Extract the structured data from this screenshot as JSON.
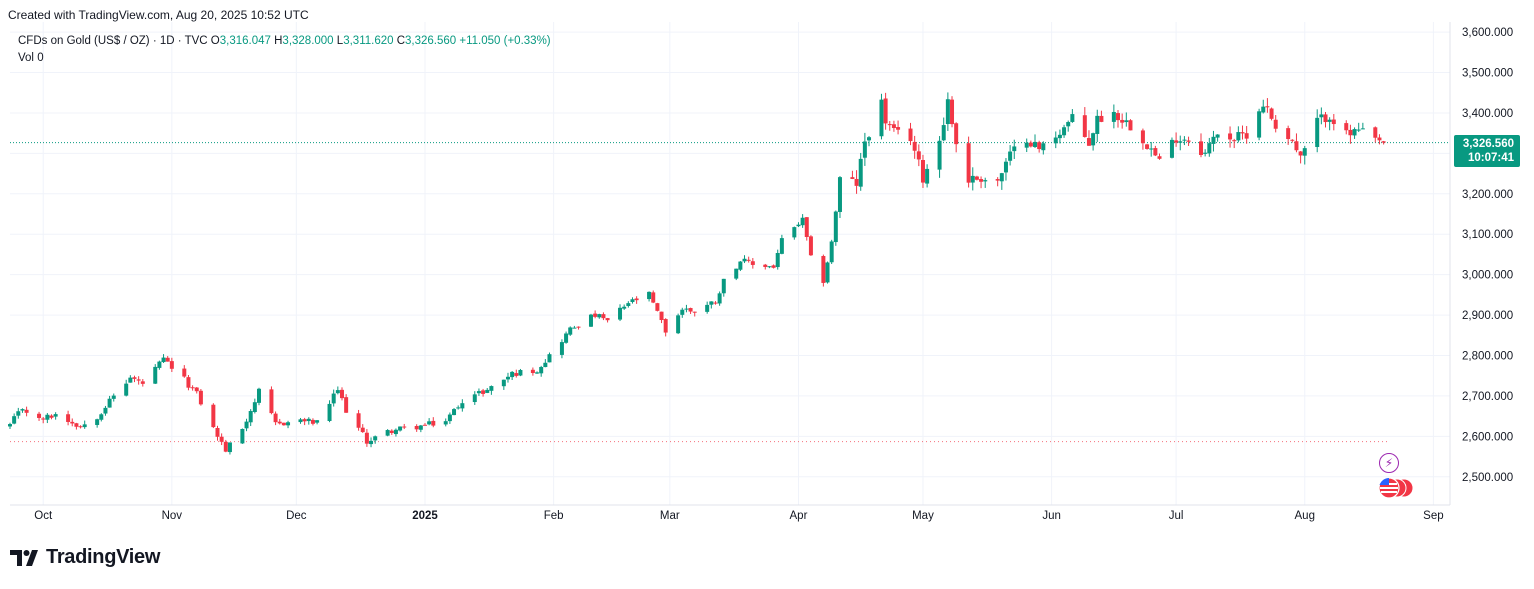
{
  "header": {
    "created_text": "Created with TradingView.com, Aug 20, 2025 10:52 UTC"
  },
  "legend": {
    "symbol": "CFDs on Gold (US$ / OZ) · 1D · TVC",
    "o_label": "O",
    "o_value": "3,316.047",
    "h_label": "H",
    "h_value": "3,328.000",
    "l_label": "L",
    "l_value": "3,311.620",
    "c_label": "C",
    "c_value": "3,326.560",
    "change": "+11.050 (+0.33%)",
    "vol_label": "Vol",
    "vol_value": "0"
  },
  "price_tag": {
    "price": "3,326.560",
    "countdown": "10:07:41"
  },
  "logo": {
    "text": "TradingView"
  },
  "events": {
    "flash_icon": "lightning-icon",
    "flags_icon": "us-flag-icon"
  },
  "colors": {
    "up": "#089981",
    "down": "#f23645",
    "grid": "#f0f3fa",
    "axis_text": "#131722",
    "flash": "#9c27b0"
  },
  "chart_data": {
    "type": "candlestick",
    "title": "CFDs on Gold (US$ / OZ)",
    "interval": "1D",
    "x_axis": {
      "range": [
        "2024-09-23",
        "2025-09-05"
      ],
      "ticks": [
        {
          "label": "Oct",
          "date": "2024-10-01"
        },
        {
          "label": "Nov",
          "date": "2024-11-01"
        },
        {
          "label": "Dec",
          "date": "2024-12-01"
        },
        {
          "label": "2025",
          "date": "2025-01-01",
          "bold": true
        },
        {
          "label": "Feb",
          "date": "2025-02-01"
        },
        {
          "label": "Mar",
          "date": "2025-03-01"
        },
        {
          "label": "Apr",
          "date": "2025-04-01"
        },
        {
          "label": "May",
          "date": "2025-05-01"
        },
        {
          "label": "Jun",
          "date": "2025-06-01"
        },
        {
          "label": "Jul",
          "date": "2025-07-01"
        },
        {
          "label": "Aug",
          "date": "2025-08-01"
        },
        {
          "label": "Sep",
          "date": "2025-09-01"
        }
      ]
    },
    "y_axis": {
      "range": [
        2450,
        3625
      ],
      "ticks": [
        "2,500.000",
        "2,600.000",
        "2,700.000",
        "2,800.000",
        "2,900.000",
        "3,000.000",
        "3,100.000",
        "3,200.000",
        "3,300.000",
        "3,400.000",
        "3,500.000",
        "3,600.000"
      ],
      "tick_values": [
        2500,
        2600,
        2700,
        2800,
        2900,
        3000,
        3100,
        3200,
        3300,
        3400,
        3500,
        3600
      ],
      "position": "right"
    },
    "grid": true,
    "last_price_line": 3326.56,
    "lower_dotted_line": 2587,
    "close_path": [
      [
        "2024-09-23",
        2628
      ],
      [
        "2024-09-26",
        2670
      ],
      [
        "2024-09-30",
        2640
      ],
      [
        "2024-10-04",
        2655
      ],
      [
        "2024-10-10",
        2625
      ],
      [
        "2024-10-14",
        2650
      ],
      [
        "2024-10-18",
        2700
      ],
      [
        "2024-10-22",
        2745
      ],
      [
        "2024-10-25",
        2730
      ],
      [
        "2024-10-30",
        2790
      ],
      [
        "2024-11-04",
        2740
      ],
      [
        "2024-11-07",
        2705
      ],
      [
        "2024-11-11",
        2620
      ],
      [
        "2024-11-14",
        2565
      ],
      [
        "2024-11-18",
        2620
      ],
      [
        "2024-11-22",
        2710
      ],
      [
        "2024-11-26",
        2630
      ],
      [
        "2024-12-02",
        2640
      ],
      [
        "2024-12-06",
        2633
      ],
      [
        "2024-12-11",
        2715
      ],
      [
        "2024-12-13",
        2665
      ],
      [
        "2024-12-18",
        2588
      ],
      [
        "2024-12-24",
        2615
      ],
      [
        "2024-12-31",
        2625
      ],
      [
        "2025-01-06",
        2638
      ],
      [
        "2025-01-10",
        2690
      ],
      [
        "2025-01-16",
        2715
      ],
      [
        "2025-01-22",
        2755
      ],
      [
        "2025-01-28",
        2765
      ],
      [
        "2025-01-31",
        2800
      ],
      [
        "2025-02-05",
        2865
      ],
      [
        "2025-02-11",
        2900
      ],
      [
        "2025-02-14",
        2885
      ],
      [
        "2025-02-19",
        2930
      ],
      [
        "2025-02-24",
        2950
      ],
      [
        "2025-02-28",
        2860
      ],
      [
        "2025-03-04",
        2915
      ],
      [
        "2025-03-07",
        2910
      ],
      [
        "2025-03-12",
        2935
      ],
      [
        "2025-03-14",
        2985
      ],
      [
        "2025-03-18",
        3035
      ],
      [
        "2025-03-21",
        3025
      ],
      [
        "2025-03-26",
        3020
      ],
      [
        "2025-03-28",
        3085
      ],
      [
        "2025-04-02",
        3135
      ],
      [
        "2025-04-04",
        3040
      ],
      [
        "2025-04-07",
        2985
      ],
      [
        "2025-04-09",
        3080
      ],
      [
        "2025-04-11",
        3235
      ],
      [
        "2025-04-15",
        3225
      ],
      [
        "2025-04-17",
        3330
      ],
      [
        "2025-04-21",
        3425
      ],
      [
        "2025-04-22",
        3380
      ],
      [
        "2025-04-24",
        3350
      ],
      [
        "2025-04-28",
        3340
      ],
      [
        "2025-05-01",
        3240
      ],
      [
        "2025-05-05",
        3335
      ],
      [
        "2025-05-07",
        3430
      ],
      [
        "2025-05-09",
        3325
      ],
      [
        "2025-05-12",
        3235
      ],
      [
        "2025-05-15",
        3240
      ],
      [
        "2025-05-19",
        3230
      ],
      [
        "2025-05-22",
        3295
      ],
      [
        "2025-05-26",
        3340
      ],
      [
        "2025-05-29",
        3310
      ],
      [
        "2025-06-03",
        3355
      ],
      [
        "2025-06-06",
        3385
      ],
      [
        "2025-06-10",
        3325
      ],
      [
        "2025-06-12",
        3385
      ],
      [
        "2025-06-16",
        3400
      ],
      [
        "2025-06-20",
        3370
      ],
      [
        "2025-06-24",
        3325
      ],
      [
        "2025-06-27",
        3280
      ],
      [
        "2025-07-01",
        3340
      ],
      [
        "2025-07-04",
        3335
      ],
      [
        "2025-07-08",
        3300
      ],
      [
        "2025-07-11",
        3355
      ],
      [
        "2025-07-15",
        3335
      ],
      [
        "2025-07-18",
        3350
      ],
      [
        "2025-07-22",
        3425
      ],
      [
        "2025-07-25",
        3370
      ],
      [
        "2025-07-29",
        3330
      ],
      [
        "2025-07-31",
        3285
      ],
      [
        "2025-08-04",
        3380
      ],
      [
        "2025-08-07",
        3395
      ],
      [
        "2025-08-11",
        3345
      ],
      [
        "2025-08-14",
        3355
      ],
      [
        "2025-08-18",
        3330
      ],
      [
        "2025-08-20",
        3326.56
      ]
    ]
  }
}
